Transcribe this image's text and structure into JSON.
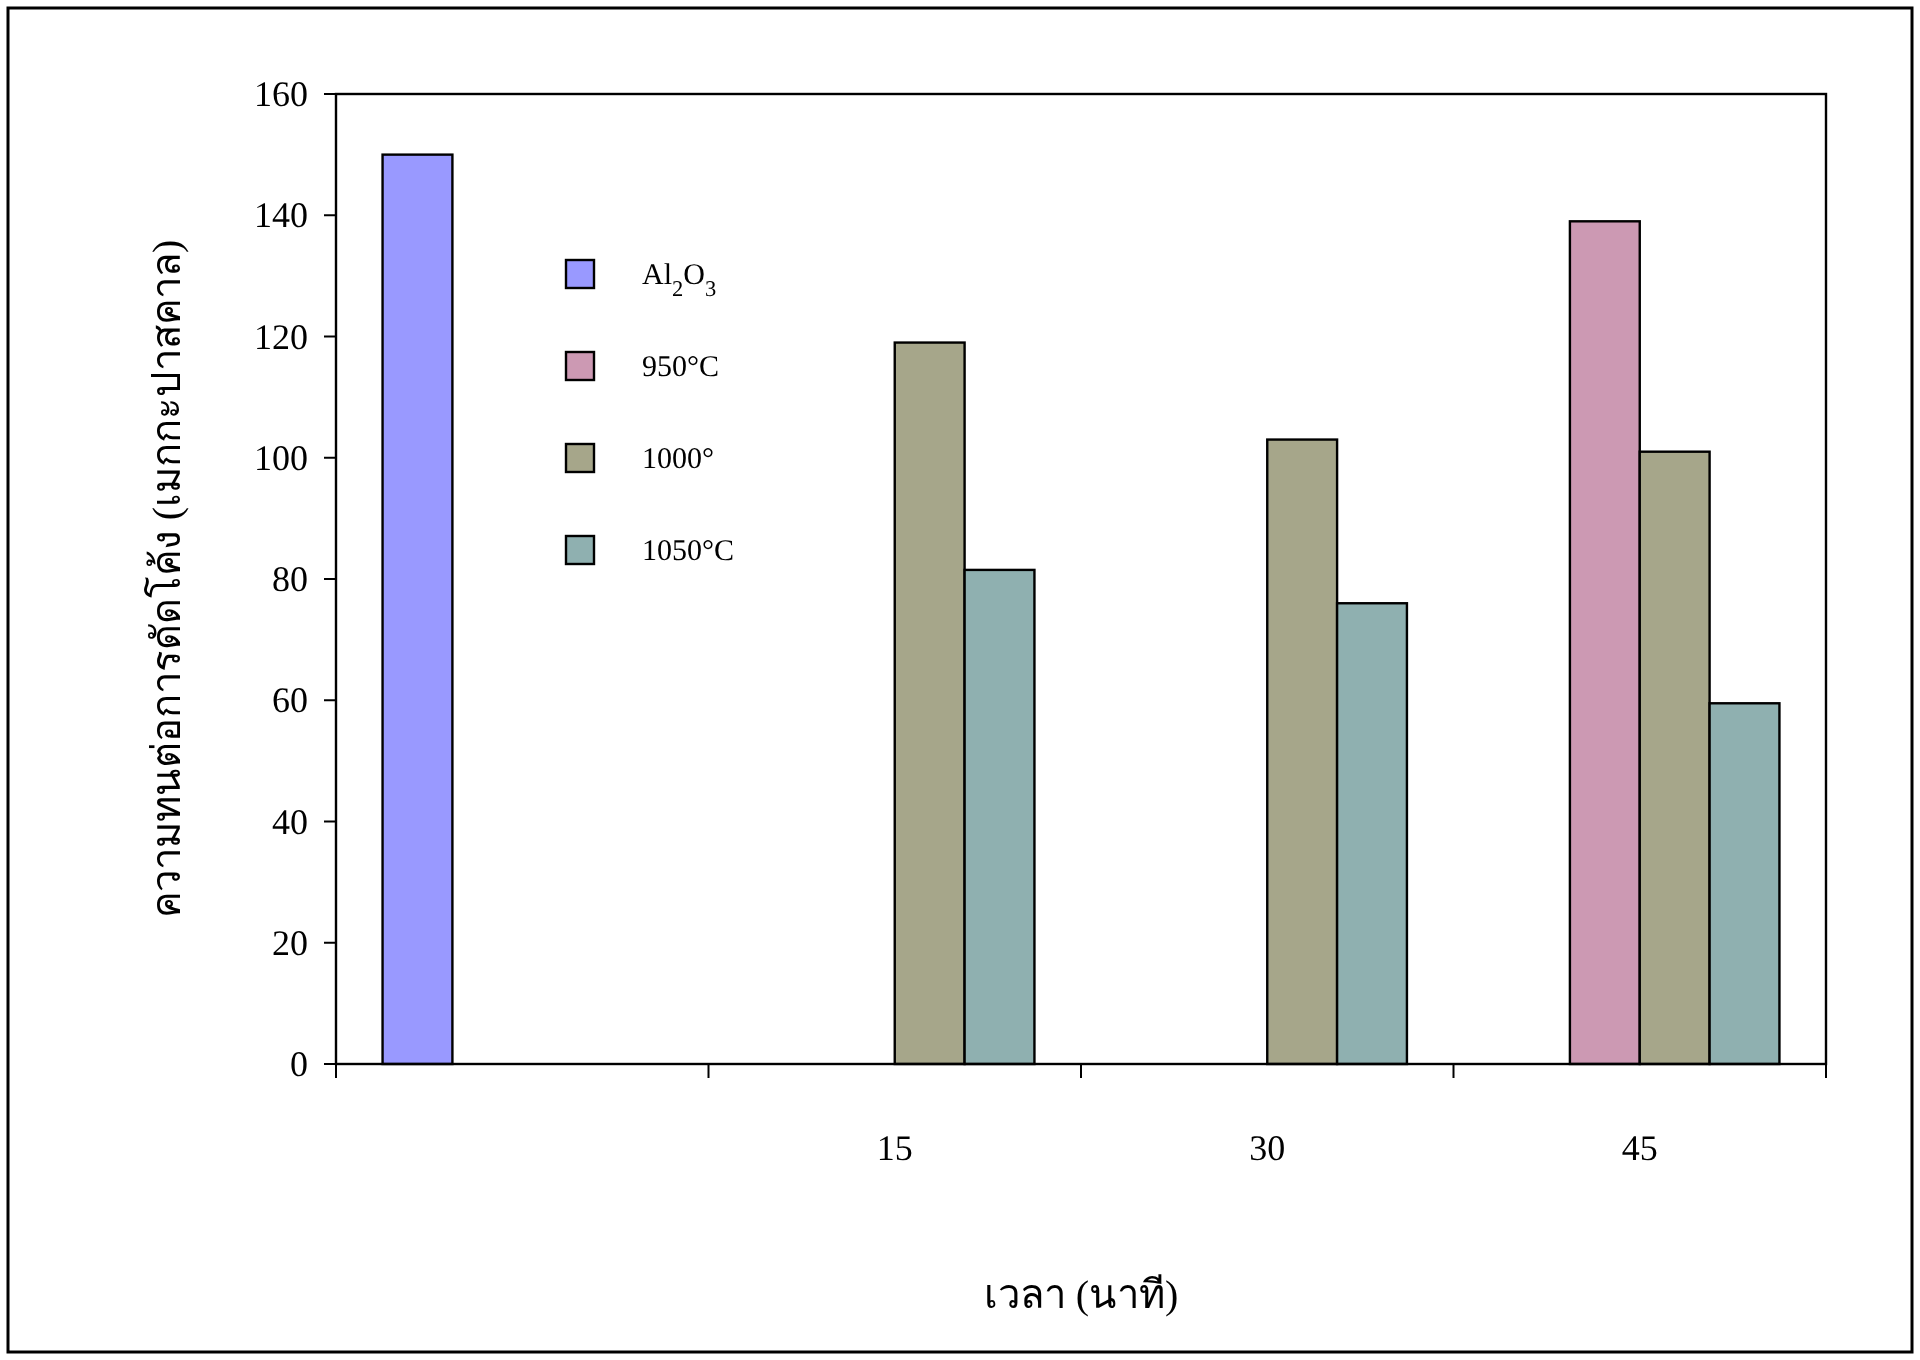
{
  "chart_data": {
    "type": "bar",
    "xlabel": "เวลา (นาที)",
    "ylabel": "ความทนต่อการดัดโค้ง (เมกกะปาสคาล)",
    "categories": [
      null,
      "15",
      "30",
      "45"
    ],
    "series": [
      {
        "name": "Al$_{2}$O$_{3}$",
        "color": "#9999ff",
        "values": [
          150,
          null,
          null,
          null
        ]
      },
      {
        "name": "950°C",
        "color": "#cc99b3",
        "values": [
          null,
          null,
          null,
          139
        ]
      },
      {
        "name": "1000°",
        "color": "#a6a68a",
        "values": [
          null,
          119,
          103,
          101
        ]
      },
      {
        "name": "1050°C",
        "color": "#8fb0b0",
        "values": [
          null,
          81.5,
          76,
          59.5
        ]
      }
    ],
    "ylim": [
      0,
      160
    ],
    "yticks": [
      0,
      20,
      40,
      60,
      80,
      100,
      120,
      140,
      160
    ],
    "grid": false,
    "legend": "top left"
  }
}
